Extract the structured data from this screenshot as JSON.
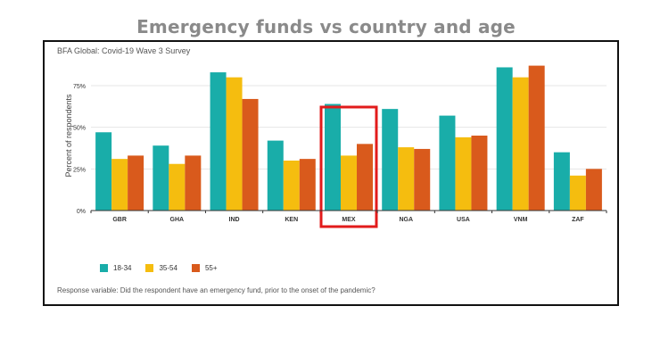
{
  "page": {
    "title": "Emergency funds vs country and age",
    "source": "BFA Global: Covid-19 Wave 3 Survey",
    "footnote": "Response variable: Did the respondent have an emergency fund, prior to the onset of the pandemic?"
  },
  "colors": {
    "series_18_34": "#19ada9",
    "series_35_54": "#f5bd0f",
    "series_55_plus": "#d95a1c",
    "highlight_box": "#e21b1b",
    "grid": "#e6e6e6",
    "axis": "#333333"
  },
  "chart_data": {
    "type": "bar",
    "title": "Emergency funds vs country and age",
    "xlabel": "",
    "ylabel": "Percent of respondents",
    "ylim": [
      0,
      0.9
    ],
    "yticks": [
      0,
      0.25,
      0.5,
      0.75
    ],
    "ytick_labels": [
      "0%",
      "25%",
      "50%",
      "75%"
    ],
    "grid": true,
    "legend_position": "bottom-left",
    "categories": [
      "GBR",
      "GHA",
      "IND",
      "KEN",
      "MEX",
      "NGA",
      "USA",
      "VNM",
      "ZAF"
    ],
    "highlighted_category": "MEX",
    "series": [
      {
        "name": "18-34",
        "color": "#19ada9",
        "values": [
          0.47,
          0.39,
          0.83,
          0.42,
          0.64,
          0.61,
          0.57,
          0.86,
          0.35
        ]
      },
      {
        "name": "35-54",
        "color": "#f5bd0f",
        "values": [
          0.31,
          0.28,
          0.8,
          0.3,
          0.33,
          0.38,
          0.44,
          0.8,
          0.21
        ]
      },
      {
        "name": "55+",
        "color": "#d95a1c",
        "values": [
          0.33,
          0.33,
          0.67,
          0.31,
          0.4,
          0.37,
          0.45,
          0.87,
          0.25
        ]
      }
    ]
  }
}
